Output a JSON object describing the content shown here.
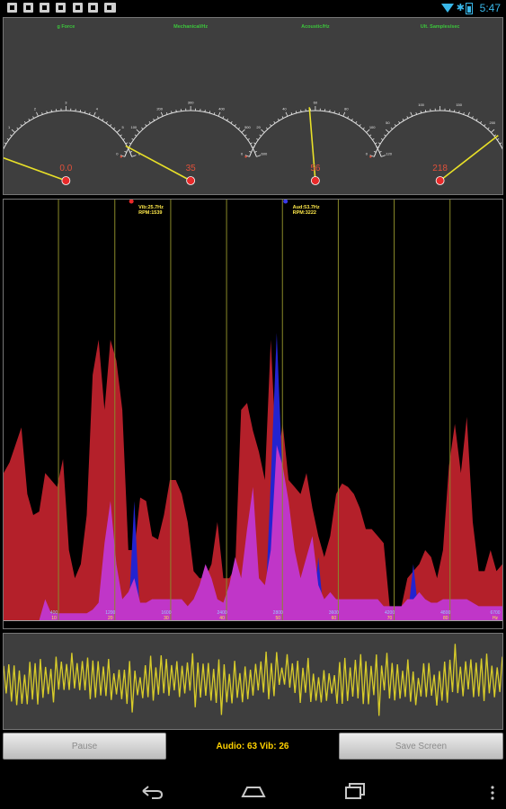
{
  "gauges": [
    {
      "label": "g Force",
      "value_text": "0.0",
      "ticks": [
        "0",
        "1",
        "2",
        "3",
        "4",
        "5",
        "6"
      ],
      "min": 0,
      "max": 6,
      "value": 0.0
    },
    {
      "label": "Mechanical/Hz",
      "value_text": "35",
      "ticks": [
        "0",
        "100",
        "200",
        "300",
        "400",
        "500",
        "600"
      ],
      "min": 0,
      "max": 600,
      "value": 35
    },
    {
      "label": "Acoustic/Hz",
      "value_text": "56",
      "ticks": [
        "0",
        "20",
        "40",
        "60",
        "80",
        "100",
        "120"
      ],
      "min": 0,
      "max": 120,
      "value": 56
    },
    {
      "label": "Ult. Samples/sec",
      "value_text": "218",
      "ticks": [
        "0",
        "50",
        "100",
        "150",
        "200",
        "250"
      ],
      "min": 0,
      "max": 250,
      "value": 218
    }
  ],
  "spectrum": {
    "peak_markers": [
      {
        "line1": "Vib:25.7Hz",
        "line2": "RPM:1539",
        "x_fraction": 0.285
      },
      {
        "line1": "Aud:53.7Hz",
        "line2": "RPM:3222",
        "x_fraction": 0.594
      }
    ],
    "freq_labels_top": [
      "400",
      "1200",
      "1600",
      "2400",
      "2800",
      "3600",
      "4200",
      "4800",
      "6700"
    ],
    "freq_labels_bottom": [
      "10",
      "20",
      "30",
      "40",
      "50",
      "60",
      "70",
      "80",
      "Hz"
    ],
    "gridlines_x_fraction": [
      0.11,
      0.223,
      0.335,
      0.447,
      0.559,
      0.671,
      0.783,
      0.895
    ],
    "red_profile": [
      0.42,
      0.45,
      0.5,
      0.55,
      0.36,
      0.3,
      0.31,
      0.42,
      0.4,
      0.38,
      0.46,
      0.2,
      0.12,
      0.16,
      0.3,
      0.7,
      0.8,
      0.6,
      0.8,
      0.74,
      0.6,
      0.2,
      0.2,
      0.35,
      0.34,
      0.24,
      0.23,
      0.3,
      0.4,
      0.4,
      0.36,
      0.28,
      0.14,
      0.12,
      0.12,
      0.16,
      0.28,
      0.12,
      0.12,
      0.15,
      0.6,
      0.62,
      0.54,
      0.48,
      0.4,
      0.8,
      0.44,
      0.56,
      0.4,
      0.38,
      0.36,
      0.42,
      0.32,
      0.24,
      0.18,
      0.24,
      0.36,
      0.39,
      0.38,
      0.36,
      0.32,
      0.26,
      0.26,
      0.24,
      0.22,
      0.04,
      0.02,
      0.04,
      0.12,
      0.14,
      0.16,
      0.2,
      0.18,
      0.12,
      0.2,
      0.44,
      0.56,
      0.42,
      0.58,
      0.28,
      0.14,
      0.14,
      0.2,
      0.14,
      0.16
    ],
    "blue_profile": [
      0,
      0,
      0,
      0,
      0,
      0,
      0,
      0,
      0,
      0,
      0,
      0,
      0,
      0,
      0,
      0,
      0,
      0,
      0,
      0,
      0,
      0,
      0.34,
      0,
      0,
      0,
      0,
      0,
      0,
      0,
      0,
      0,
      0,
      0,
      0,
      0,
      0,
      0,
      0,
      0,
      0,
      0,
      0,
      0,
      0,
      0.4,
      0.82,
      0.4,
      0,
      0,
      0,
      0,
      0,
      0.18,
      0,
      0,
      0,
      0,
      0,
      0,
      0,
      0,
      0,
      0,
      0,
      0,
      0,
      0,
      0,
      0.16,
      0,
      0,
      0,
      0,
      0,
      0,
      0,
      0,
      0,
      0,
      0,
      0,
      0,
      0,
      0
    ],
    "magenta_profile": [
      0,
      0,
      0,
      0,
      0,
      0,
      0,
      0.06,
      0.02,
      0.02,
      0.02,
      0.02,
      0.02,
      0.02,
      0.02,
      0.03,
      0.05,
      0.22,
      0.34,
      0.16,
      0.06,
      0.08,
      0.12,
      0.05,
      0.05,
      0.06,
      0.06,
      0.06,
      0.06,
      0.06,
      0.06,
      0.04,
      0.06,
      0.1,
      0.16,
      0.12,
      0.06,
      0.05,
      0.1,
      0.18,
      0.12,
      0.26,
      0.38,
      0.12,
      0.1,
      0.2,
      0.5,
      0.44,
      0.34,
      0.2,
      0.12,
      0.18,
      0.24,
      0.1,
      0.06,
      0.08,
      0.06,
      0.06,
      0.06,
      0.06,
      0.06,
      0.06,
      0.06,
      0.06,
      0.04,
      0.04,
      0.04,
      0.04,
      0.06,
      0.06,
      0.08,
      0.06,
      0.05,
      0.05,
      0.06,
      0.06,
      0.06,
      0.06,
      0.06,
      0.05,
      0.04,
      0.04,
      0.04,
      0.04,
      0.04
    ]
  },
  "buttons": {
    "pause": "Pause",
    "save_screen": "Save Screen"
  },
  "level_readout": "Audio: 63 Vib: 26",
  "status": {
    "clock": "5:47"
  },
  "colors": {
    "spectrum_red": "#b4202a",
    "spectrum_magenta": "#c036c8",
    "spectrum_blue": "#2323d0",
    "gridline": "#8a8a2a",
    "needle": "#e8e028",
    "value_text": "#e0503a",
    "wave": "#d8cc2a"
  }
}
